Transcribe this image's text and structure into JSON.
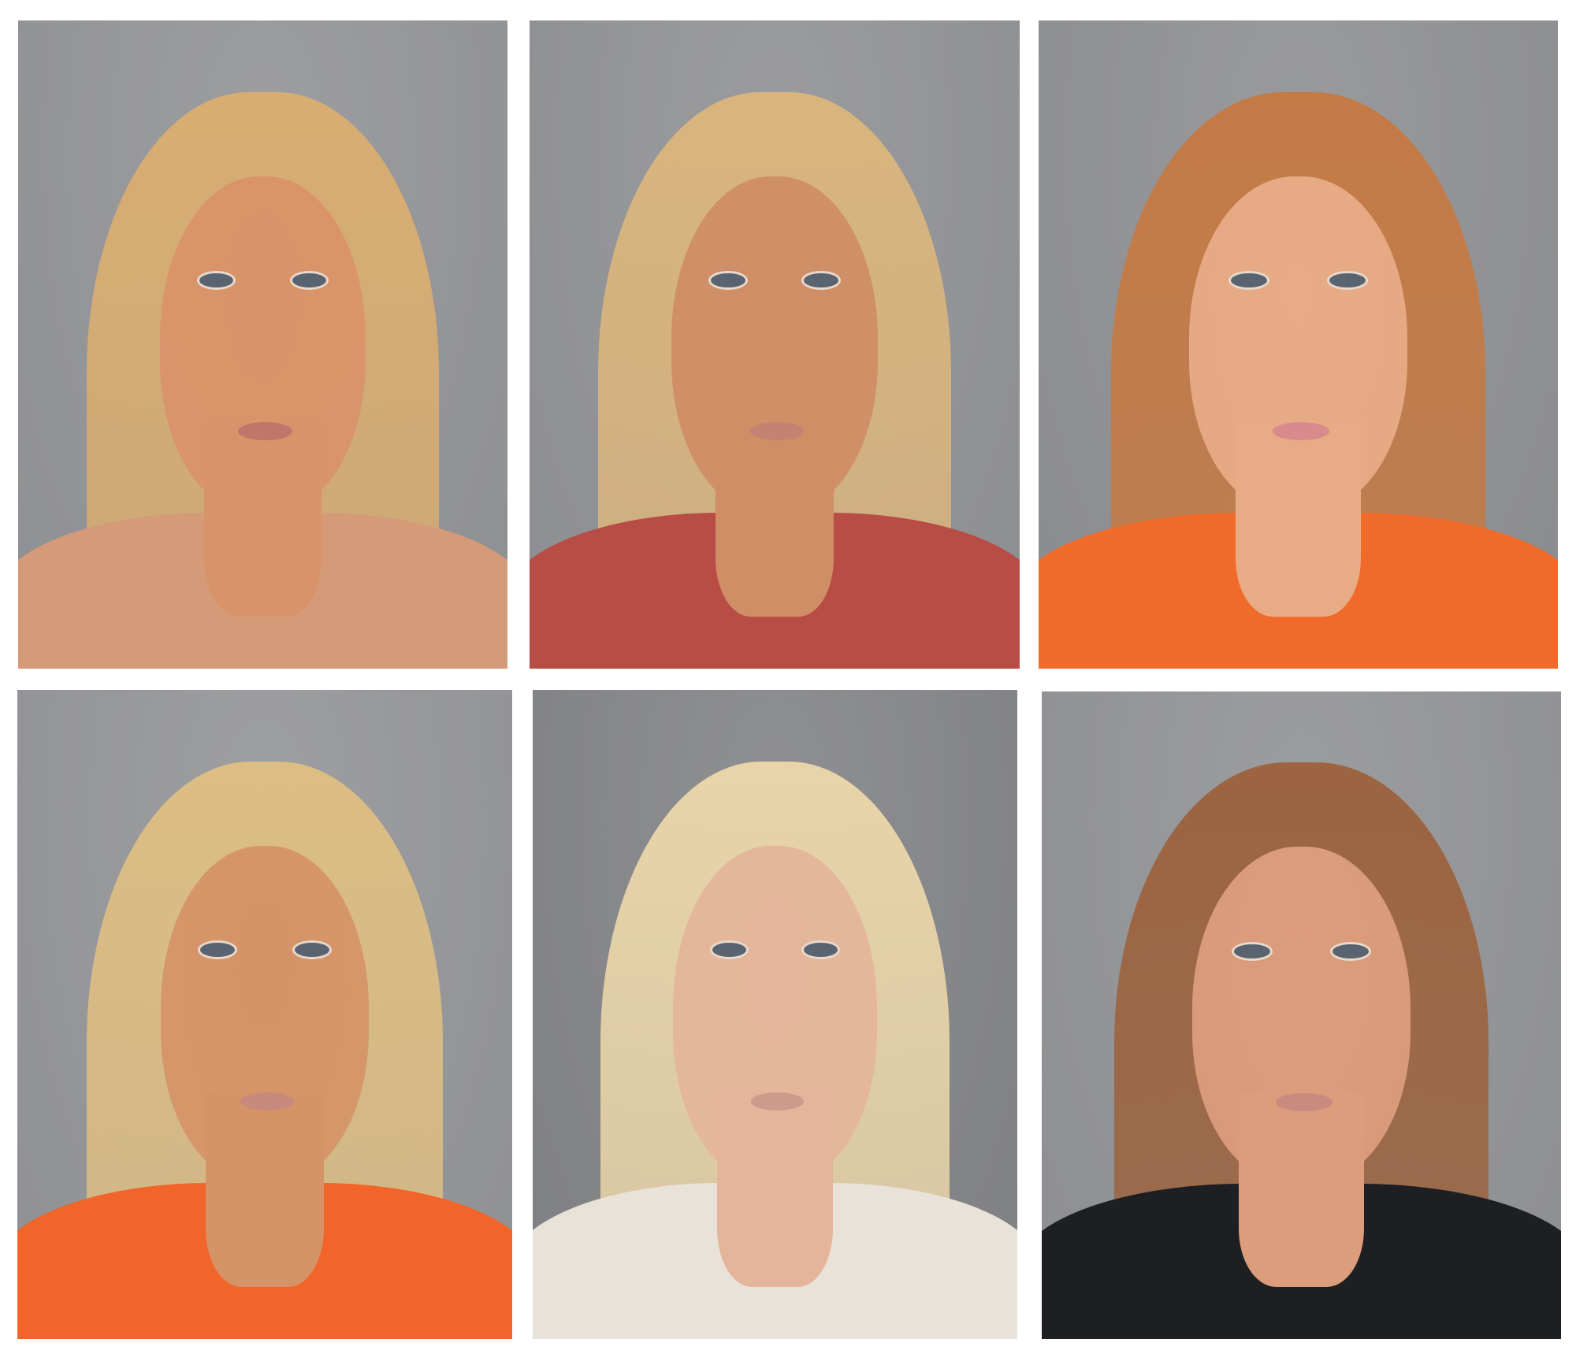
{
  "panels": [
    {
      "background": "#8e8f92",
      "hair": "#d8ad72",
      "skin": "#d9936a",
      "clothing": "#d59a78",
      "lips": "#c0766a"
    },
    {
      "background": "#8c8d90",
      "hair": "#d9b57e",
      "skin": "#cf8e66",
      "clothing": "#b84d45",
      "lips": "#c48272"
    },
    {
      "background": "#8a8b8e",
      "hair": "#c47a45",
      "skin": "#e7ab86",
      "clothing": "#f06a2a",
      "lips": "#d88a8c"
    },
    {
      "background": "#8f9093",
      "hair": "#dcbd84",
      "skin": "#d59468",
      "clothing": "#f1642a",
      "lips": "#c88a7d"
    },
    {
      "background": "#7e7f82",
      "hair": "#e8d4a8",
      "skin": "#e4b59a",
      "clothing": "#e8e2d8",
      "lips": "#cd9a8c"
    },
    {
      "background": "#8d8e91",
      "hair": "#9c6440",
      "skin": "#dc9d7c",
      "clothing": "#1e1f22",
      "lips": "#c98a80"
    }
  ]
}
